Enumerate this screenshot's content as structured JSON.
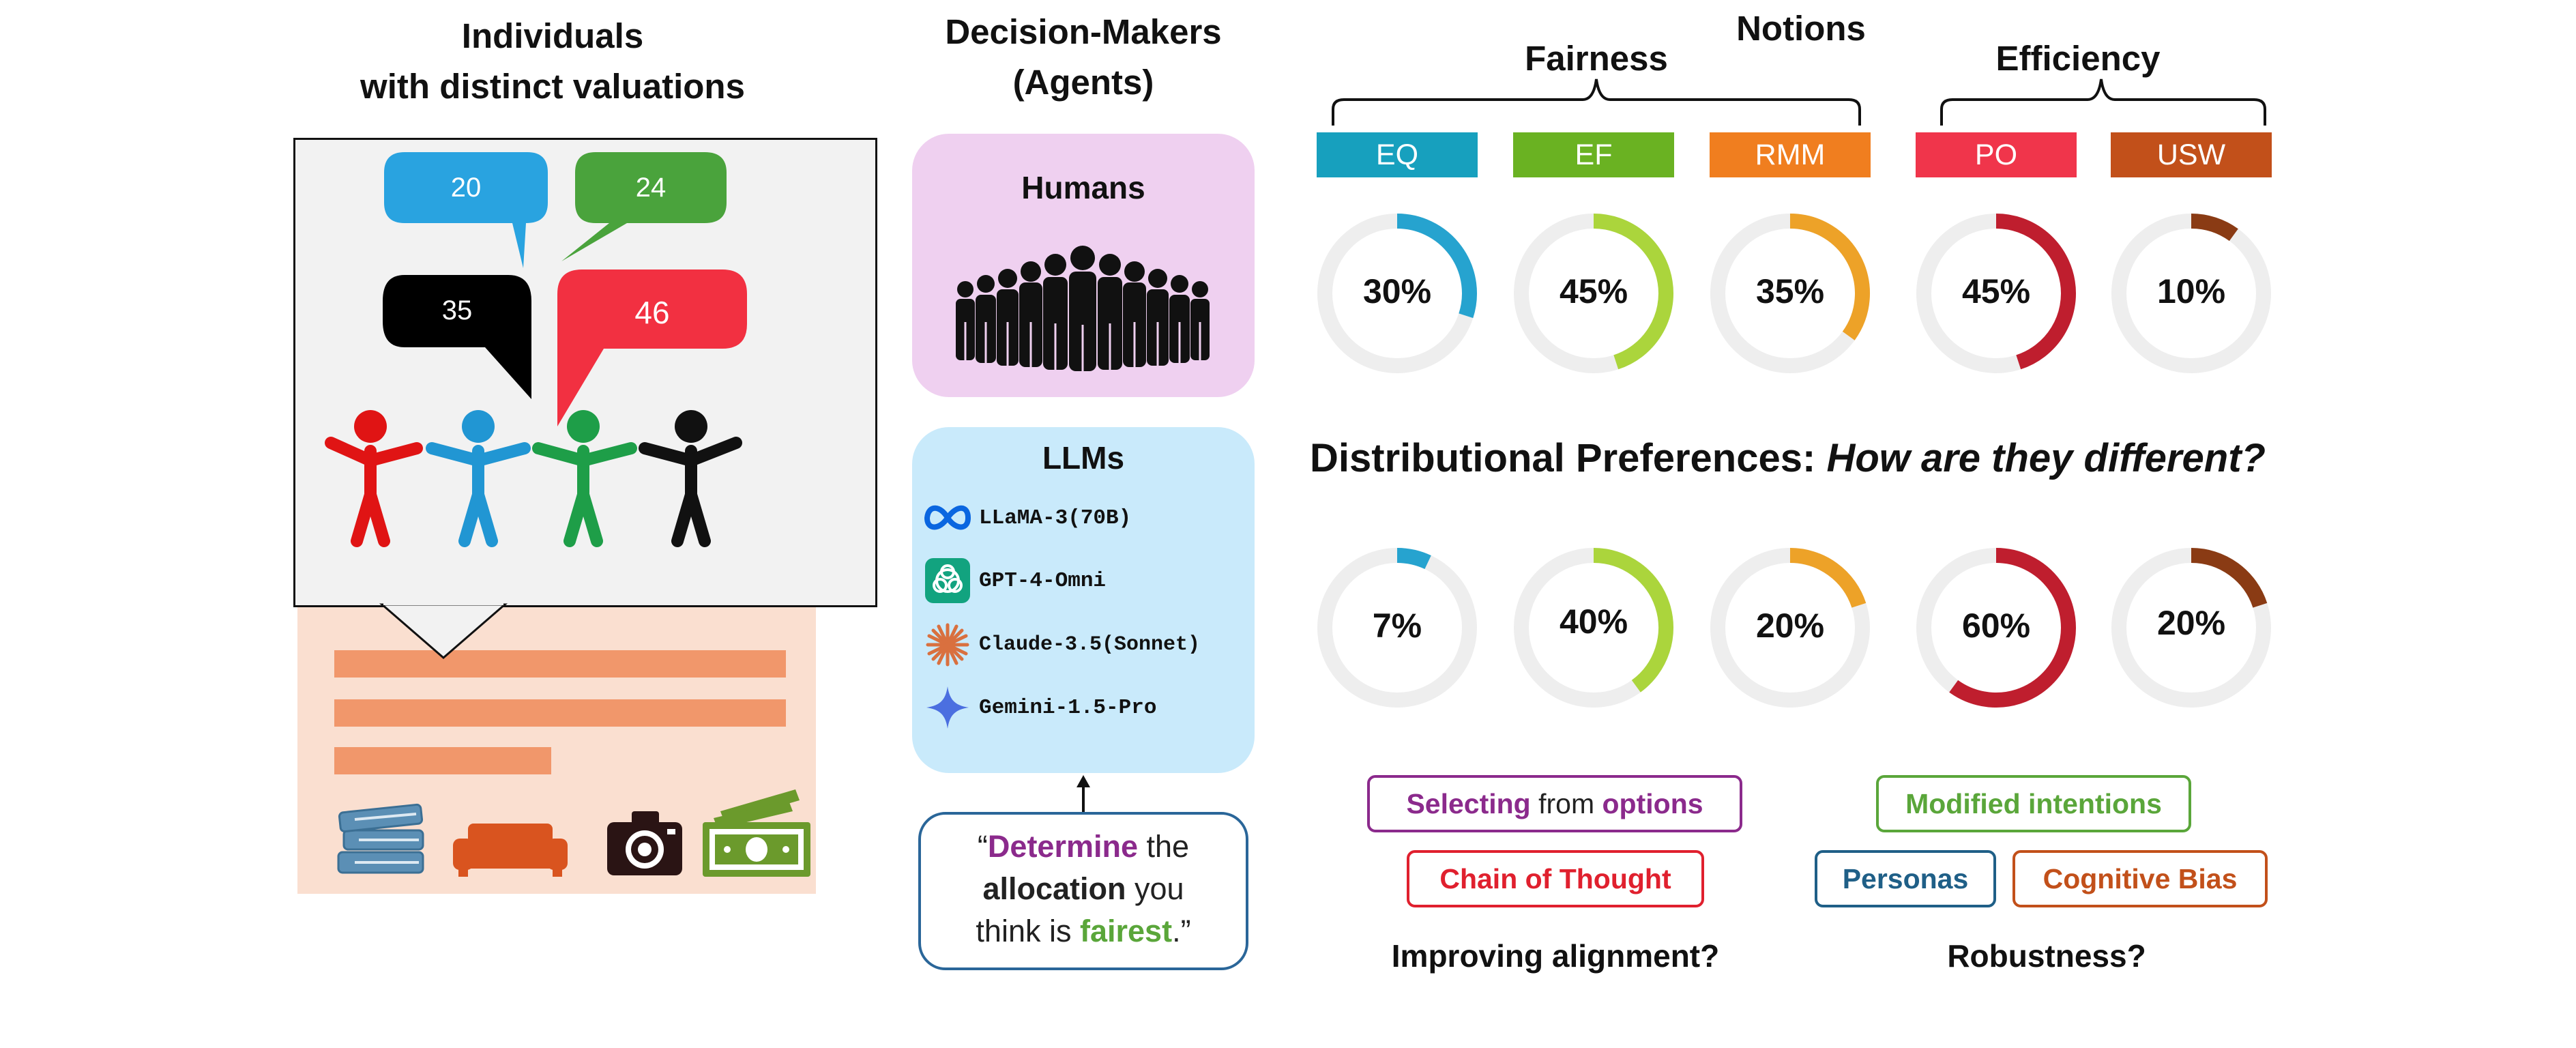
{
  "left": {
    "title_line1": "Individuals",
    "title_line2": "with distinct valuations",
    "bubbles": [
      "20",
      "24",
      "35",
      "46"
    ]
  },
  "agents": {
    "title_line1": "Decision-Makers",
    "title_line2": "(Agents)",
    "humans_label": "Humans",
    "llms_label": "LLMs",
    "llms": [
      "LLaMA-3(70B)",
      "GPT-4-Omni",
      "Claude-3.5(Sonnet)",
      "Gemini-1.5-Pro"
    ],
    "prompt": {
      "q_open": "“",
      "w1": "Determine",
      "t1": " the",
      "w2": "allocation",
      "t2": " you",
      "t3": "think is ",
      "w3": "fairest",
      "q_close": ".”"
    }
  },
  "notions": {
    "title": "Notions",
    "fairness": "Fairness",
    "efficiency": "Efficiency",
    "tags": [
      {
        "label": "EQ",
        "color": "#17a0be"
      },
      {
        "label": "EF",
        "color": "#6ab222"
      },
      {
        "label": "RMM",
        "color": "#f07e1f"
      },
      {
        "label": "PO",
        "color": "#f0354b"
      },
      {
        "label": "USW",
        "color": "#c2501a"
      }
    ],
    "row1": [
      "30%",
      "45%",
      "35%",
      "45%",
      "10%"
    ],
    "row1_values": [
      30,
      45,
      35,
      45,
      10
    ],
    "row2": [
      "7%",
      "40%",
      "20%",
      "60%",
      "20%"
    ],
    "row2_values": [
      7,
      40,
      20,
      60,
      20
    ],
    "ring_colors": [
      "#26a3cf",
      "#abd53c",
      "#eda228",
      "#bf1e2e",
      "#8a3b14"
    ],
    "question_prefix": "Distributional Preferences: ",
    "question_italic": "How are they different?"
  },
  "methods": {
    "selecting_w1": "Selecting",
    "selecting_w2": " from ",
    "selecting_w3": "options",
    "cot": "Chain of Thought",
    "improving": "Improving alignment?",
    "modified": "Modified intentions",
    "personas": "Personas",
    "cognitive": "Cognitive Bias",
    "robustness": "Robustness?"
  }
}
